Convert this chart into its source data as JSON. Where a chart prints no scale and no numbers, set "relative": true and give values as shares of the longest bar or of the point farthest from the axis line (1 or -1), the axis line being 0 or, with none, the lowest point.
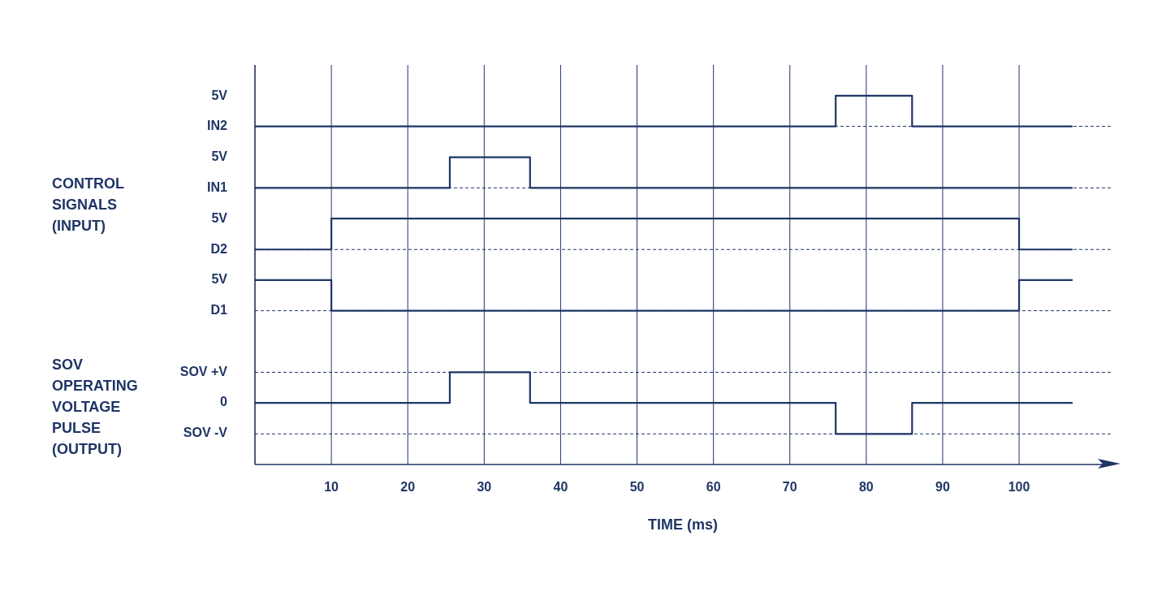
{
  "chart_data": {
    "type": "step",
    "xlabel": "TIME (ms)",
    "relative": true,
    "xlim": [
      0,
      112
    ],
    "xticks": [
      10,
      20,
      30,
      40,
      50,
      60,
      70,
      80,
      90,
      100
    ],
    "grid": "x",
    "marker": "none",
    "line_style": "solid",
    "series": [
      {
        "color": "#1f3566",
        "x": [
          0,
          76,
          86,
          107
        ],
        "values": [
          0.917,
          1,
          0.917,
          0.917
        ]
      },
      {
        "color": "#1f3566",
        "x": [
          0,
          25.5,
          36,
          107
        ],
        "values": [
          0.75,
          0.833,
          0.75,
          0.75
        ]
      },
      {
        "color": "#1f3566",
        "x": [
          0,
          10,
          100,
          107
        ],
        "values": [
          0.583,
          0.667,
          0.583,
          0.583
        ]
      },
      {
        "color": "#1f3566",
        "x": [
          0,
          10,
          100,
          107
        ],
        "values": [
          0.5,
          0.417,
          0.5,
          0.5
        ]
      },
      {
        "color": "#1f3566",
        "x": [
          0,
          25.5,
          36,
          76,
          86,
          107
        ],
        "values": [
          0.167,
          0.25,
          0.167,
          0.083,
          0.167,
          0.167
        ]
      }
    ],
    "ref_lines": [
      {
        "axis": "y",
        "value": 0.917,
        "line_style": "dashed",
        "color": "#1f3566"
      },
      {
        "axis": "y",
        "value": 0.75,
        "line_style": "dashed",
        "color": "#1f3566"
      },
      {
        "axis": "y",
        "value": 0.583,
        "line_style": "dashed",
        "color": "#1f3566"
      },
      {
        "axis": "y",
        "value": 0.417,
        "line_style": "dashed",
        "color": "#1f3566"
      },
      {
        "axis": "y",
        "value": 0.25,
        "line_style": "dashed",
        "color": "#1f3566"
      },
      {
        "axis": "y",
        "value": 0.083,
        "line_style": "dashed",
        "color": "#1f3566"
      }
    ],
    "annotations": [
      "5V",
      "IN2",
      "5V",
      "IN1",
      "5V",
      "D2",
      "5V",
      "D1",
      "SOV +V",
      "0",
      "SOV -V",
      "CONTROL SIGNALS (INPUT)",
      "SOV OPERATING VOLTAGE PULSE (OUTPUT)"
    ]
  }
}
